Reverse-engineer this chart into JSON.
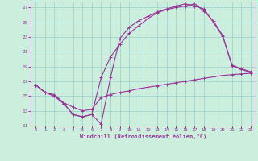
{
  "xlabel": "Windchill (Refroidissement éolien,°C)",
  "bg_color": "#cceedd",
  "line_color": "#993399",
  "grid_color": "#99cccc",
  "xlim_min": -0.5,
  "xlim_max": 23.5,
  "ylim_min": 11,
  "ylim_max": 27.8,
  "xticks": [
    0,
    1,
    2,
    3,
    4,
    5,
    6,
    7,
    8,
    9,
    10,
    11,
    12,
    13,
    14,
    15,
    16,
    17,
    18,
    19,
    20,
    21,
    22,
    23
  ],
  "yticks": [
    11,
    13,
    15,
    17,
    19,
    21,
    23,
    25,
    27
  ],
  "line1_x": [
    0,
    1,
    2,
    3,
    4,
    5,
    6,
    7,
    8,
    9,
    10,
    11,
    12,
    13,
    14,
    15,
    16,
    17,
    18,
    19,
    20,
    21,
    22,
    23
  ],
  "line1_y": [
    16.5,
    15.5,
    15.2,
    14.1,
    13.5,
    13.0,
    13.2,
    14.8,
    15.2,
    15.5,
    15.7,
    16.0,
    16.2,
    16.4,
    16.6,
    16.8,
    17.0,
    17.2,
    17.4,
    17.6,
    17.8,
    17.9,
    18.0,
    18.1
  ],
  "line2_x": [
    0,
    1,
    2,
    3,
    4,
    5,
    6,
    7,
    8,
    9,
    10,
    11,
    12,
    13,
    14,
    15,
    16,
    17,
    18,
    19,
    20,
    21,
    22,
    23
  ],
  "line2_y": [
    16.5,
    15.5,
    15.0,
    14.0,
    12.5,
    12.2,
    12.5,
    11.2,
    17.5,
    22.8,
    24.3,
    25.2,
    25.8,
    26.4,
    26.8,
    27.2,
    27.5,
    27.2,
    26.8,
    25.0,
    23.1,
    19.1,
    18.6,
    18.2
  ],
  "line3_x": [
    0,
    1,
    2,
    3,
    4,
    5,
    6,
    7,
    8,
    9,
    10,
    11,
    12,
    13,
    14,
    15,
    16,
    17,
    18,
    19,
    20,
    21,
    22,
    23
  ],
  "line3_y": [
    16.5,
    15.5,
    15.0,
    14.0,
    12.5,
    12.2,
    12.5,
    17.5,
    20.3,
    22.0,
    23.5,
    24.5,
    25.5,
    26.3,
    26.7,
    27.0,
    27.2,
    27.5,
    26.5,
    25.2,
    23.2,
    19.2,
    18.7,
    18.3
  ]
}
